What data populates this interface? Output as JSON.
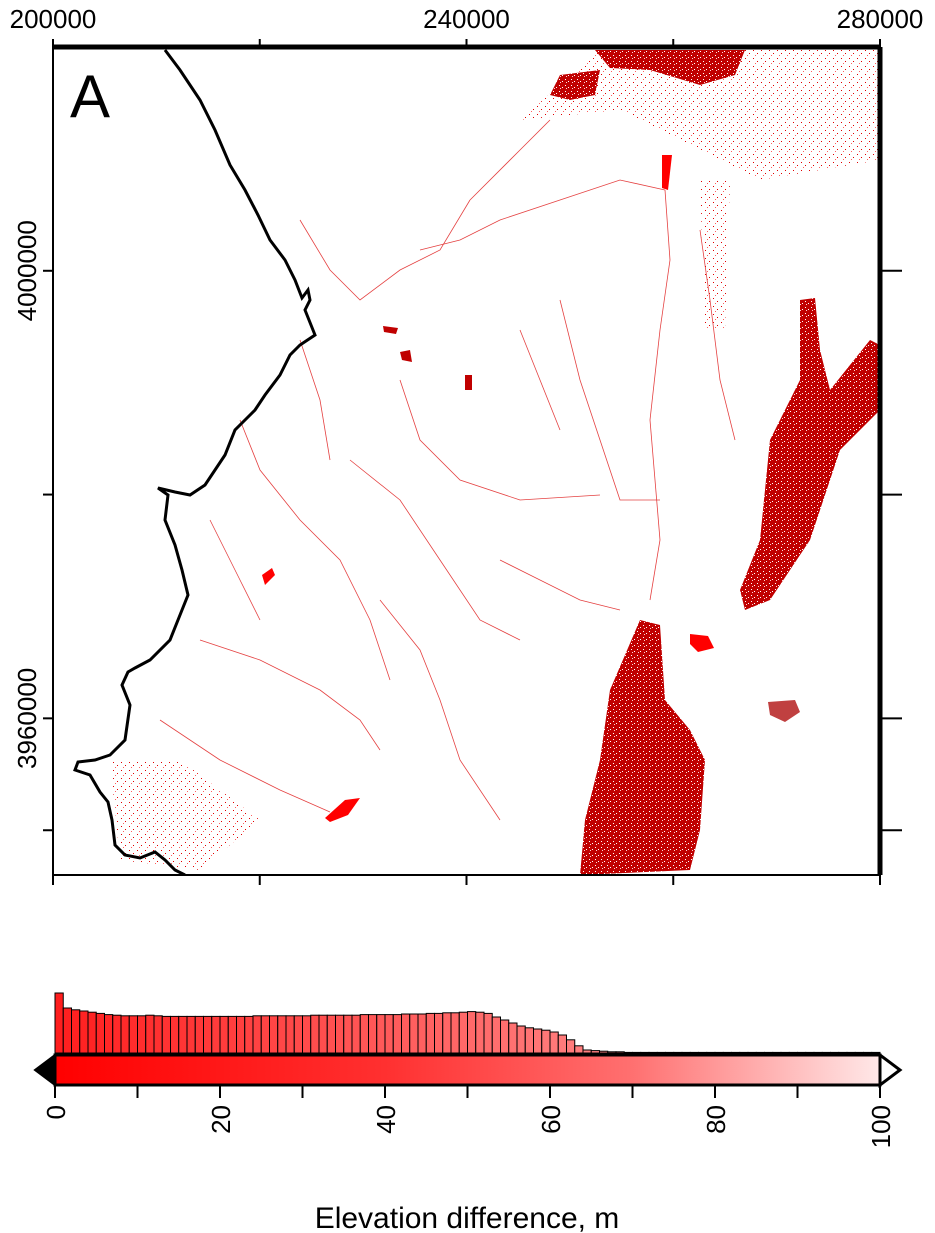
{
  "panel_label": "A",
  "colors": {
    "accent_red": "#ff0000",
    "dark_red": "#b00000",
    "pale_end": "#ffe8e8",
    "frame": "#000000"
  },
  "map": {
    "x_axis": {
      "min": 200000,
      "max": 280000,
      "labels": [
        {
          "value": 200000,
          "text": "200000"
        },
        {
          "value": 240000,
          "text": "240000"
        },
        {
          "value": 280000,
          "text": "280000"
        }
      ],
      "minor_ticks": [
        200000,
        220000,
        240000,
        260000,
        280000
      ]
    },
    "y_axis": {
      "min": 3946000,
      "max": 4020000,
      "labels": [
        {
          "value": 4000000,
          "text": "4000000"
        },
        {
          "value": 3960000,
          "text": "3960000"
        }
      ],
      "minor_ticks": [
        4000000,
        3980000,
        3960000,
        3950000
      ]
    }
  },
  "colorbar": {
    "title": "Elevation difference, m",
    "min": 0,
    "max": 100,
    "labels": [
      {
        "value": 0,
        "text": "0"
      },
      {
        "value": 20,
        "text": "20"
      },
      {
        "value": 40,
        "text": "40"
      },
      {
        "value": 60,
        "text": "60"
      },
      {
        "value": 80,
        "text": "80"
      },
      {
        "value": 100,
        "text": "100"
      }
    ],
    "minor_ticks": [
      0,
      10,
      20,
      30,
      40,
      50,
      60,
      70,
      80,
      90,
      100
    ]
  },
  "chart_data": {
    "type": "bar",
    "title": "",
    "xlabel": "Elevation difference, m",
    "xlim": [
      0,
      100
    ],
    "bin_width": 1,
    "note_values": "relative frequency of elevation-difference values (histogram above colorbar), approximate",
    "values": [
      1.0,
      0.75,
      0.72,
      0.7,
      0.68,
      0.66,
      0.64,
      0.63,
      0.62,
      0.62,
      0.62,
      0.63,
      0.62,
      0.61,
      0.61,
      0.61,
      0.61,
      0.61,
      0.61,
      0.61,
      0.61,
      0.61,
      0.61,
      0.61,
      0.62,
      0.62,
      0.62,
      0.62,
      0.62,
      0.62,
      0.62,
      0.63,
      0.63,
      0.63,
      0.63,
      0.63,
      0.63,
      0.64,
      0.64,
      0.64,
      0.64,
      0.64,
      0.65,
      0.65,
      0.65,
      0.66,
      0.66,
      0.67,
      0.67,
      0.68,
      0.69,
      0.68,
      0.66,
      0.6,
      0.55,
      0.5,
      0.45,
      0.42,
      0.4,
      0.38,
      0.35,
      0.3,
      0.22,
      0.12,
      0.05,
      0.04,
      0.03,
      0.02,
      0.02,
      0.01,
      0.01,
      0.01,
      0.01,
      0.01,
      0.01,
      0.01,
      0.01,
      0.01,
      0.01,
      0.01,
      0.01,
      0.01,
      0.01,
      0.01,
      0.01,
      0.01,
      0.01,
      0.01,
      0.01,
      0.01,
      0.01,
      0.01,
      0.01,
      0.01,
      0.01,
      0.01,
      0.01,
      0.01,
      0.01,
      0.01
    ]
  }
}
